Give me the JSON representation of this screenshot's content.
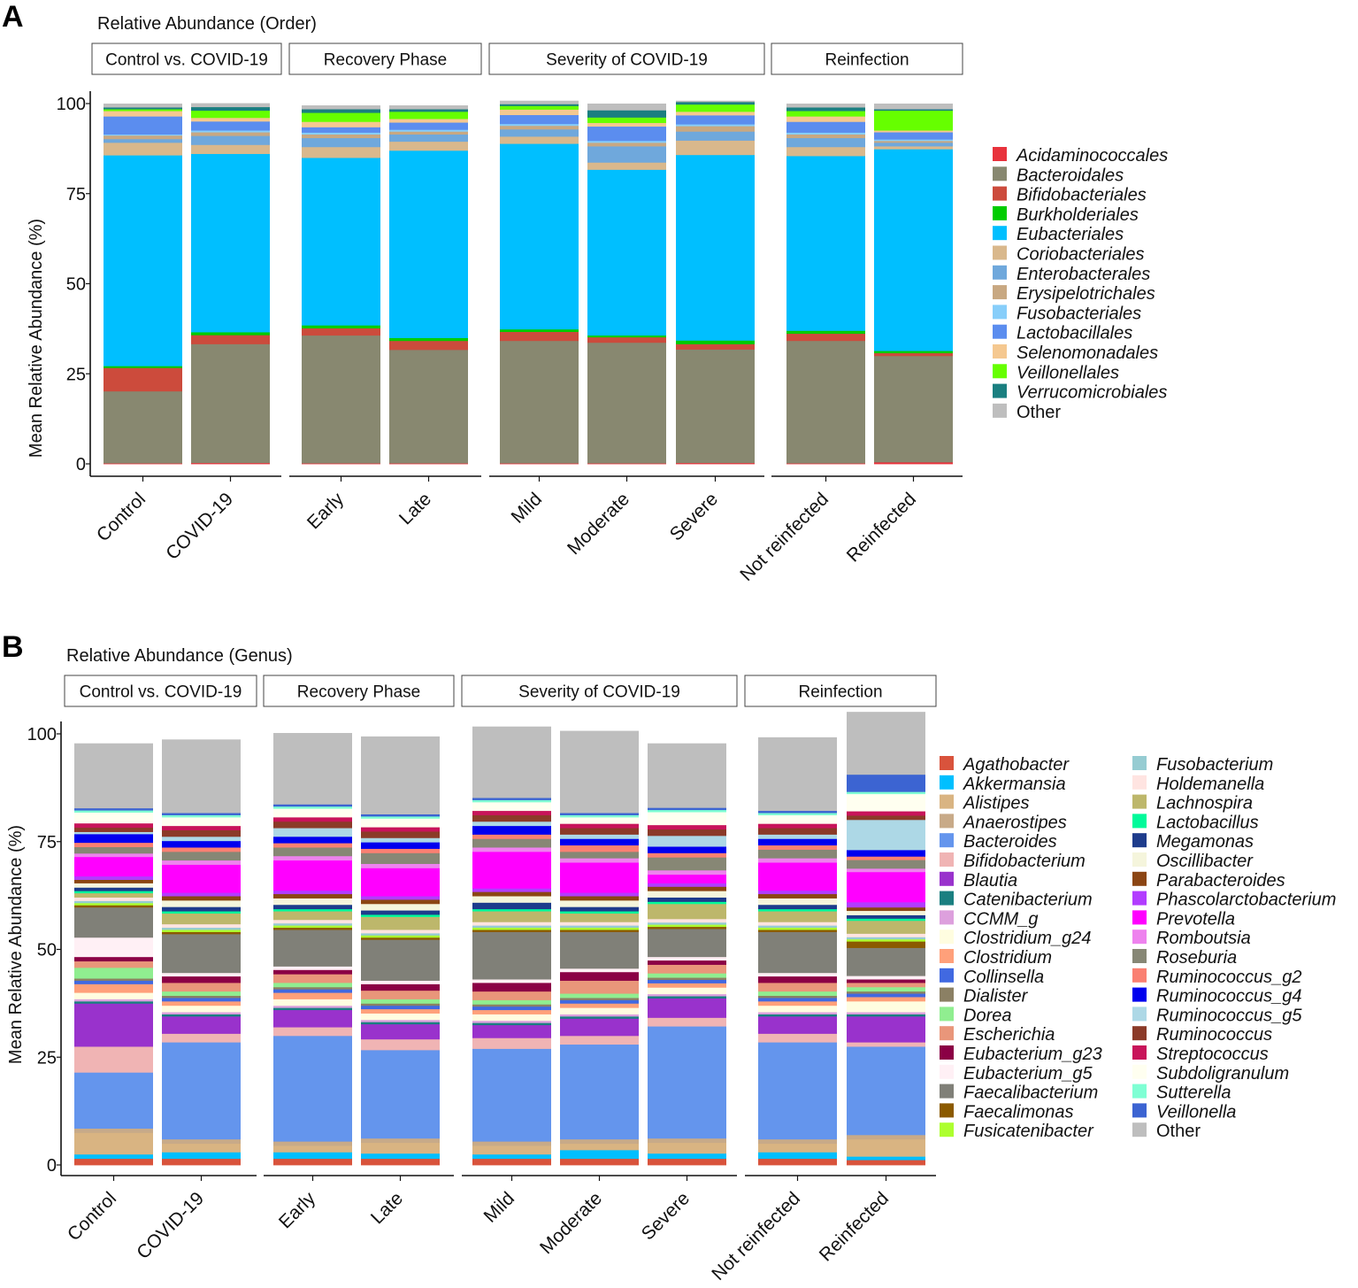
{
  "chart_data": [
    {
      "panel": "A",
      "type": "bar",
      "stacked": true,
      "title": "Relative Abundance  (Order)",
      "ylabel": "Mean Relative Abundance  (%)",
      "xlabel": "",
      "ylim": [
        0,
        100
      ],
      "yticks": [
        0,
        25,
        50,
        75,
        100
      ],
      "facets": [
        "Control vs. COVID-19",
        "Recovery Phase",
        "Severity of COVID-19",
        "Reinfection"
      ],
      "categories": [
        {
          "facet": 0,
          "label": "Control"
        },
        {
          "facet": 0,
          "label": "COVID-19"
        },
        {
          "facet": 1,
          "label": "Early"
        },
        {
          "facet": 1,
          "label": "Late"
        },
        {
          "facet": 2,
          "label": "Mild"
        },
        {
          "facet": 2,
          "label": "Moderate"
        },
        {
          "facet": 2,
          "label": "Severe"
        },
        {
          "facet": 3,
          "label": "Not reinfected"
        },
        {
          "facet": 3,
          "label": "Reinfected"
        }
      ],
      "legend_columns": 1,
      "series": [
        {
          "name": "Acidaminococcales",
          "color": "#e8323c",
          "values": [
            0.2,
            0.3,
            0.2,
            0.2,
            0.2,
            0.2,
            0.3,
            0.2,
            0.5
          ]
        },
        {
          "name": "Bacteroidales",
          "color": "#888870",
          "values": [
            20.0,
            33.0,
            35.5,
            31.5,
            34.0,
            33.5,
            31.5,
            34.0,
            29.5
          ]
        },
        {
          "name": "Bifidobacteriales",
          "color": "#cc4b3c",
          "values": [
            6.5,
            2.5,
            2.0,
            2.5,
            2.5,
            1.5,
            1.5,
            2.0,
            0.8
          ]
        },
        {
          "name": "Burkholderiales",
          "color": "#00cc00",
          "values": [
            0.5,
            0.8,
            0.8,
            0.8,
            0.7,
            0.5,
            1.0,
            0.8,
            0.6
          ]
        },
        {
          "name": "Eubacteriales",
          "color": "#00bfff",
          "values": [
            58.5,
            49.5,
            46.5,
            52.0,
            51.5,
            46.0,
            51.5,
            48.5,
            56.0
          ]
        },
        {
          "name": "Coriobacteriales",
          "color": "#d9b88c",
          "values": [
            3.5,
            2.5,
            3.0,
            2.5,
            2.0,
            2.0,
            4.0,
            2.5,
            0.8
          ]
        },
        {
          "name": "Enterobacterales",
          "color": "#6fa8dc",
          "values": [
            1.0,
            2.5,
            2.5,
            2.0,
            2.0,
            4.5,
            2.5,
            2.5,
            1.0
          ]
        },
        {
          "name": "Erysipelotrichales",
          "color": "#c8a882",
          "values": [
            1.0,
            1.0,
            1.0,
            0.8,
            1.0,
            1.0,
            1.5,
            1.0,
            0.5
          ]
        },
        {
          "name": "Fusobacteriales",
          "color": "#87cefa",
          "values": [
            0.3,
            0.5,
            0.5,
            0.5,
            0.5,
            0.5,
            0.5,
            0.5,
            0.4
          ]
        },
        {
          "name": "Lactobacillales",
          "color": "#5b8def",
          "values": [
            5.0,
            2.5,
            1.5,
            2.0,
            2.5,
            4.0,
            2.5,
            3.0,
            2.0
          ]
        },
        {
          "name": "Selenomonadales",
          "color": "#f5c890",
          "values": [
            1.5,
            1.0,
            1.5,
            1.0,
            1.5,
            1.0,
            1.0,
            1.5,
            0.5
          ]
        },
        {
          "name": "Veillonellales",
          "color": "#66ff00",
          "values": [
            0.5,
            2.0,
            2.5,
            2.0,
            1.0,
            1.5,
            2.0,
            1.5,
            5.5
          ]
        },
        {
          "name": "Verrucomicrobiales",
          "color": "#1a7f80",
          "values": [
            0.5,
            1.0,
            1.0,
            0.7,
            0.5,
            2.0,
            0.7,
            1.0,
            0.4
          ]
        },
        {
          "name": "Other",
          "color": "#bebebe",
          "values": [
            1.0,
            1.0,
            1.0,
            1.0,
            0.9,
            1.8,
            0.3,
            1.0,
            1.5
          ]
        }
      ]
    },
    {
      "panel": "B",
      "type": "bar",
      "stacked": true,
      "title": "Relative Abundance  (Genus)",
      "ylabel": "Mean Relative Abundance  (%)",
      "xlabel": "",
      "ylim": [
        0,
        100
      ],
      "yticks": [
        0,
        25,
        50,
        75,
        100
      ],
      "facets": [
        "Control vs. COVID-19",
        "Recovery Phase",
        "Severity of COVID-19",
        "Reinfection"
      ],
      "categories": [
        {
          "facet": 0,
          "label": "Control"
        },
        {
          "facet": 0,
          "label": "COVID-19"
        },
        {
          "facet": 1,
          "label": "Early"
        },
        {
          "facet": 1,
          "label": "Late"
        },
        {
          "facet": 2,
          "label": "Mild"
        },
        {
          "facet": 2,
          "label": "Moderate"
        },
        {
          "facet": 2,
          "label": "Severe"
        },
        {
          "facet": 3,
          "label": "Not reinfected"
        },
        {
          "facet": 3,
          "label": "Reinfected"
        }
      ],
      "legend_columns": 2,
      "series": [
        {
          "name": "Agathobacter",
          "color": "#d9533c",
          "values": [
            1.5,
            1.5,
            1.5,
            1.5,
            1.5,
            1.5,
            1.5,
            1.5,
            1.2
          ]
        },
        {
          "name": "Akkermansia",
          "color": "#00bfff",
          "values": [
            1.0,
            1.5,
            1.5,
            1.2,
            1.0,
            2.0,
            1.2,
            1.5,
            0.8
          ]
        },
        {
          "name": "Alistipes",
          "color": "#d9b482",
          "values": [
            5.0,
            2.0,
            1.5,
            2.5,
            2.0,
            1.5,
            2.5,
            2.0,
            4.0
          ]
        },
        {
          "name": "Anaerostipes",
          "color": "#c8aa88",
          "values": [
            1.0,
            1.0,
            1.0,
            1.0,
            1.0,
            1.0,
            1.0,
            1.0,
            1.0
          ]
        },
        {
          "name": "Bacteroides",
          "color": "#6495ed",
          "values": [
            13.0,
            22.5,
            24.5,
            20.5,
            21.5,
            22.0,
            26.0,
            22.5,
            20.5
          ]
        },
        {
          "name": "Bifidobacterium",
          "color": "#f0b4b4",
          "values": [
            6.0,
            2.0,
            2.0,
            2.5,
            2.5,
            2.0,
            2.0,
            2.0,
            1.0
          ]
        },
        {
          "name": "Blautia",
          "color": "#9932cc",
          "values": [
            10.0,
            4.0,
            4.0,
            3.5,
            3.0,
            4.0,
            4.5,
            4.0,
            6.0
          ]
        },
        {
          "name": "Catenibacterium",
          "color": "#1a7f80",
          "values": [
            0.5,
            0.5,
            0.5,
            0.5,
            0.5,
            0.5,
            0.5,
            0.5,
            0.5
          ]
        },
        {
          "name": "CCMM_g",
          "color": "#dda0dd",
          "values": [
            0.5,
            0.5,
            0.5,
            0.5,
            0.5,
            0.5,
            0.5,
            0.5,
            0.5
          ]
        },
        {
          "name": "Clostridium_g24",
          "color": "#fffde0",
          "values": [
            1.5,
            1.5,
            1.5,
            1.5,
            1.5,
            1.5,
            1.5,
            1.5,
            2.5
          ]
        },
        {
          "name": "Clostridium",
          "color": "#ffa07a",
          "values": [
            2.0,
            1.0,
            1.5,
            1.0,
            1.0,
            1.0,
            1.0,
            1.0,
            1.0
          ]
        },
        {
          "name": "Collinsella",
          "color": "#4169e1",
          "values": [
            0.8,
            0.8,
            0.8,
            0.8,
            0.8,
            0.8,
            0.8,
            0.8,
            0.8
          ]
        },
        {
          "name": "Dialister",
          "color": "#8b8064",
          "values": [
            0.5,
            0.5,
            0.5,
            0.5,
            0.5,
            0.5,
            0.5,
            0.5,
            0.5
          ]
        },
        {
          "name": "Dorea",
          "color": "#90ee90",
          "values": [
            2.5,
            1.0,
            1.0,
            1.0,
            1.0,
            1.0,
            1.0,
            1.0,
            1.0
          ]
        },
        {
          "name": "Escherichia",
          "color": "#e9967a",
          "values": [
            1.5,
            2.0,
            2.0,
            2.0,
            2.0,
            3.0,
            2.0,
            2.0,
            1.0
          ]
        },
        {
          "name": "Eubacterium_g23",
          "color": "#8b0045",
          "values": [
            1.0,
            1.5,
            1.0,
            1.5,
            2.0,
            2.0,
            1.0,
            1.5,
            0.8
          ]
        },
        {
          "name": "Eubacterium_g5",
          "color": "#fff0f5",
          "values": [
            4.5,
            0.8,
            0.8,
            0.8,
            0.8,
            0.8,
            0.8,
            0.8,
            0.8
          ]
        },
        {
          "name": "Faecalibacterium",
          "color": "#808078",
          "values": [
            7.0,
            9.0,
            8.5,
            9.5,
            11.0,
            8.5,
            6.5,
            9.5,
            6.5
          ]
        },
        {
          "name": "Faecalimonas",
          "color": "#8b5a00",
          "values": [
            0.5,
            0.5,
            0.5,
            0.5,
            0.5,
            0.5,
            0.5,
            0.5,
            1.5
          ]
        },
        {
          "name": "Fusicatenibacter",
          "color": "#adff2f",
          "values": [
            0.5,
            0.5,
            0.5,
            0.5,
            0.5,
            0.5,
            0.5,
            0.5,
            0.5
          ]
        },
        {
          "name": "Fusobacterium",
          "color": "#96ccd2",
          "values": [
            0.5,
            0.5,
            0.5,
            0.5,
            0.5,
            0.5,
            0.5,
            0.5,
            0.5
          ]
        },
        {
          "name": "Holdemanella",
          "color": "#ffe4e1",
          "values": [
            0.8,
            0.8,
            0.8,
            0.8,
            0.8,
            0.8,
            0.8,
            0.8,
            0.8
          ]
        },
        {
          "name": "Lachnospira",
          "color": "#bdb76b",
          "values": [
            1.0,
            2.5,
            2.0,
            3.0,
            2.5,
            2.0,
            3.5,
            2.5,
            3.0
          ]
        },
        {
          "name": "Lactobacillus",
          "color": "#00fa9a",
          "values": [
            0.5,
            0.5,
            0.5,
            0.5,
            0.5,
            0.5,
            0.5,
            0.5,
            0.5
          ]
        },
        {
          "name": "Megamonas",
          "color": "#1e3c8c",
          "values": [
            0.8,
            1.0,
            1.0,
            1.0,
            1.5,
            1.0,
            1.0,
            1.0,
            0.8
          ]
        },
        {
          "name": "Oscillibacter",
          "color": "#f5f5dc",
          "values": [
            1.0,
            1.5,
            1.5,
            1.5,
            1.5,
            1.5,
            1.5,
            1.5,
            1.0
          ]
        },
        {
          "name": "Parabacteroides",
          "color": "#8b4513",
          "values": [
            0.8,
            1.0,
            1.0,
            1.0,
            1.0,
            1.0,
            1.0,
            1.0,
            0.8
          ]
        },
        {
          "name": "Phascolarctobacterium",
          "color": "#b23cff",
          "values": [
            0.8,
            0.8,
            0.8,
            0.8,
            0.8,
            0.8,
            0.8,
            0.8,
            1.2
          ]
        },
        {
          "name": "Prevotella",
          "color": "#ff00ff",
          "values": [
            4.5,
            6.5,
            7.0,
            6.5,
            8.5,
            7.0,
            2.0,
            6.5,
            7.0
          ]
        },
        {
          "name": "Romboutsia",
          "color": "#ee82ee",
          "values": [
            0.8,
            1.0,
            1.0,
            1.0,
            1.0,
            1.0,
            1.0,
            1.0,
            0.8
          ]
        },
        {
          "name": "Roseburia",
          "color": "#878775",
          "values": [
            1.5,
            2.0,
            2.0,
            2.5,
            2.0,
            1.5,
            3.0,
            2.0,
            2.0
          ]
        },
        {
          "name": "Ruminococcus_g2",
          "color": "#fa8072",
          "values": [
            1.0,
            1.0,
            1.0,
            1.0,
            1.0,
            1.5,
            1.0,
            1.0,
            0.8
          ]
        },
        {
          "name": "Ruminococcus_g4",
          "color": "#0000ee",
          "values": [
            2.0,
            1.5,
            1.5,
            1.5,
            2.0,
            1.5,
            1.5,
            1.5,
            1.5
          ]
        },
        {
          "name": "Ruminococcus_g5",
          "color": "#add8e6",
          "values": [
            0.5,
            1.0,
            2.0,
            1.0,
            1.0,
            1.0,
            2.5,
            1.0,
            7.0
          ]
        },
        {
          "name": "Ruminococcus",
          "color": "#8b3a28",
          "values": [
            1.0,
            1.5,
            1.5,
            1.5,
            1.5,
            1.5,
            1.5,
            1.5,
            1.0
          ]
        },
        {
          "name": "Streptococcus",
          "color": "#c8145a",
          "values": [
            1.0,
            1.0,
            1.0,
            1.0,
            1.0,
            1.0,
            1.0,
            1.0,
            1.0
          ]
        },
        {
          "name": "Subdoligranulum",
          "color": "#fffff0",
          "values": [
            2.5,
            2.0,
            2.0,
            2.0,
            2.0,
            1.5,
            3.0,
            2.0,
            4.0
          ]
        },
        {
          "name": "Sutterella",
          "color": "#7fffd4",
          "values": [
            0.5,
            0.5,
            0.5,
            0.5,
            0.5,
            0.5,
            0.5,
            0.5,
            0.5
          ]
        },
        {
          "name": "Veillonella",
          "color": "#3c64d2",
          "values": [
            0.5,
            0.5,
            0.5,
            0.5,
            0.5,
            0.5,
            0.5,
            0.5,
            4.0
          ]
        },
        {
          "name": "Other",
          "color": "#bebebe",
          "values": [
            15.0,
            17.0,
            16.5,
            18.0,
            16.5,
            19.0,
            14.9,
            17.0,
            14.5
          ]
        }
      ]
    }
  ]
}
